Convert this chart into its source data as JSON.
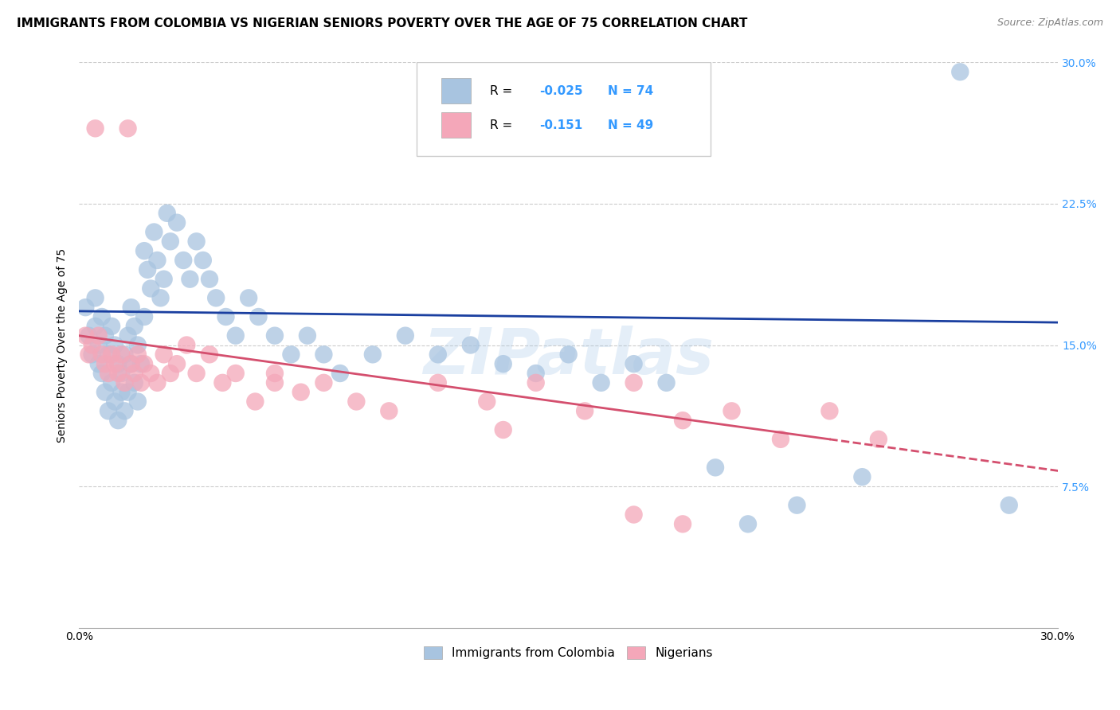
{
  "title": "IMMIGRANTS FROM COLOMBIA VS NIGERIAN SENIORS POVERTY OVER THE AGE OF 75 CORRELATION CHART",
  "source": "Source: ZipAtlas.com",
  "ylabel": "Seniors Poverty Over the Age of 75",
  "xlim": [
    0.0,
    0.3
  ],
  "ylim": [
    0.0,
    0.3
  ],
  "ytick_positions": [
    0.075,
    0.15,
    0.225,
    0.3
  ],
  "ytick_labels": [
    "7.5%",
    "15.0%",
    "22.5%",
    "30.0%"
  ],
  "xtick_positions": [
    0.0,
    0.05,
    0.1,
    0.15,
    0.2,
    0.25,
    0.3
  ],
  "xtick_labels": [
    "0.0%",
    "",
    "",
    "",
    "",
    "",
    "30.0%"
  ],
  "watermark": "ZIPatlas",
  "legend_r1_val": "-0.025",
  "legend_r2_val": "-0.151",
  "colombia_N": 74,
  "nigeria_N": 49,
  "colombia_color": "#a8c4e0",
  "nigeria_color": "#f4a7b9",
  "colombia_line_color": "#1a3fa0",
  "nigeria_line_color": "#d44f6e",
  "background_color": "#ffffff",
  "grid_color": "#cccccc",
  "title_fontsize": 11,
  "axis_fontsize": 10,
  "tick_fontsize": 10,
  "source_fontsize": 9,
  "colombia_x": [
    0.002,
    0.003,
    0.004,
    0.005,
    0.005,
    0.006,
    0.006,
    0.007,
    0.007,
    0.008,
    0.008,
    0.009,
    0.009,
    0.01,
    0.01,
    0.011,
    0.011,
    0.012,
    0.012,
    0.013,
    0.013,
    0.014,
    0.014,
    0.015,
    0.015,
    0.016,
    0.016,
    0.017,
    0.017,
    0.018,
    0.018,
    0.019,
    0.02,
    0.02,
    0.021,
    0.022,
    0.023,
    0.024,
    0.025,
    0.026,
    0.027,
    0.028,
    0.03,
    0.032,
    0.034,
    0.036,
    0.038,
    0.04,
    0.042,
    0.045,
    0.048,
    0.052,
    0.055,
    0.06,
    0.065,
    0.07,
    0.075,
    0.08,
    0.09,
    0.1,
    0.11,
    0.12,
    0.13,
    0.14,
    0.15,
    0.16,
    0.17,
    0.18,
    0.195,
    0.205,
    0.22,
    0.24,
    0.27,
    0.285
  ],
  "colombia_y": [
    0.17,
    0.155,
    0.145,
    0.175,
    0.16,
    0.15,
    0.14,
    0.165,
    0.135,
    0.155,
    0.125,
    0.145,
    0.115,
    0.16,
    0.13,
    0.15,
    0.12,
    0.14,
    0.11,
    0.135,
    0.125,
    0.145,
    0.115,
    0.155,
    0.125,
    0.17,
    0.14,
    0.16,
    0.13,
    0.15,
    0.12,
    0.14,
    0.2,
    0.165,
    0.19,
    0.18,
    0.21,
    0.195,
    0.175,
    0.185,
    0.22,
    0.205,
    0.215,
    0.195,
    0.185,
    0.205,
    0.195,
    0.185,
    0.175,
    0.165,
    0.155,
    0.175,
    0.165,
    0.155,
    0.145,
    0.155,
    0.145,
    0.135,
    0.145,
    0.155,
    0.145,
    0.15,
    0.14,
    0.135,
    0.145,
    0.13,
    0.14,
    0.13,
    0.085,
    0.055,
    0.065,
    0.08,
    0.295,
    0.065
  ],
  "nigeria_x": [
    0.002,
    0.003,
    0.004,
    0.005,
    0.006,
    0.007,
    0.008,
    0.009,
    0.01,
    0.011,
    0.012,
    0.013,
    0.014,
    0.015,
    0.016,
    0.017,
    0.018,
    0.019,
    0.02,
    0.022,
    0.024,
    0.026,
    0.028,
    0.03,
    0.033,
    0.036,
    0.04,
    0.044,
    0.048,
    0.054,
    0.06,
    0.068,
    0.075,
    0.085,
    0.095,
    0.11,
    0.125,
    0.14,
    0.155,
    0.17,
    0.185,
    0.2,
    0.215,
    0.23,
    0.245,
    0.17,
    0.185,
    0.13,
    0.06
  ],
  "nigeria_y": [
    0.155,
    0.145,
    0.15,
    0.265,
    0.155,
    0.145,
    0.14,
    0.135,
    0.145,
    0.14,
    0.135,
    0.145,
    0.13,
    0.265,
    0.14,
    0.135,
    0.145,
    0.13,
    0.14,
    0.135,
    0.13,
    0.145,
    0.135,
    0.14,
    0.15,
    0.135,
    0.145,
    0.13,
    0.135,
    0.12,
    0.13,
    0.125,
    0.13,
    0.12,
    0.115,
    0.13,
    0.12,
    0.13,
    0.115,
    0.13,
    0.11,
    0.115,
    0.1,
    0.115,
    0.1,
    0.06,
    0.055,
    0.105,
    0.135
  ]
}
